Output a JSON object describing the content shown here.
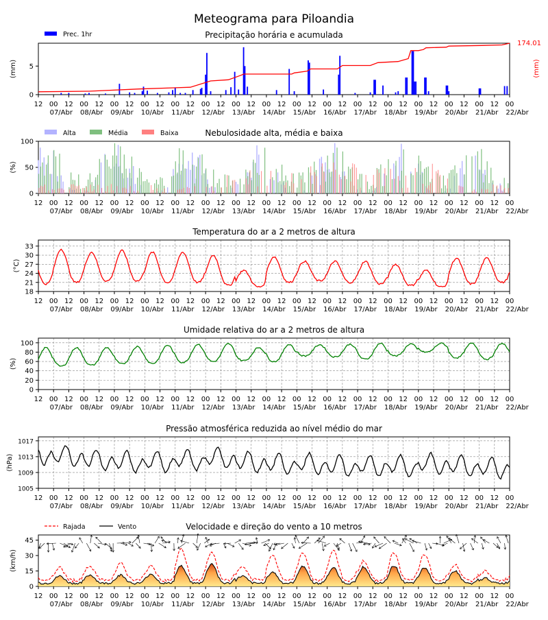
{
  "figure_title": "Meteograma para Piloandia",
  "hour_ticks": [
    "12",
    "00",
    "12",
    "00",
    "12",
    "00",
    "12",
    "00",
    "12",
    "00",
    "12",
    "00",
    "12",
    "00",
    "12",
    "00",
    "12",
    "00",
    "12",
    "00",
    "12",
    "00",
    "12",
    "00",
    "12",
    "00",
    "12",
    "00",
    "12",
    "00",
    "12",
    "00"
  ],
  "day_labels": [
    "07/Abr",
    "08/Abr",
    "09/Abr",
    "10/Abr",
    "11/Abr",
    "12/Abr",
    "13/Abr",
    "14/Abr",
    "15/Abr",
    "16/Abr",
    "17/Abr",
    "18/Abr",
    "19/Abr",
    "20/Abr",
    "21/Abr",
    "22/Abr"
  ],
  "colors": {
    "precip_bar": "#0000ff",
    "precip_line": "#ff0000",
    "cloud_high": "#b3b3ff",
    "cloud_mid": "#7fbf7f",
    "cloud_low": "#ff8080",
    "temperature": "#ff0000",
    "humidity": "#008000",
    "pressure": "#000000",
    "gust": "#ff0000",
    "wind": "#000000"
  },
  "chart_data": [
    {
      "id": "precip",
      "type": "bar",
      "title": "Precipitação horária e acumulada",
      "ylabel": "(mm)",
      "ylabel_right": "(mm)",
      "ylim": [
        0,
        9
      ],
      "yticks": [
        0,
        5
      ],
      "x_unit": "hours since 06/Abr 12h",
      "xlim": [
        0,
        372
      ],
      "legend": [
        {
          "name": "Prec. 1hr"
        }
      ],
      "accum_label": "174.01",
      "bars": [
        [
          18,
          0.3
        ],
        [
          24,
          0.3
        ],
        [
          37,
          0.2
        ],
        [
          40,
          0.3
        ],
        [
          53,
          0.2
        ],
        [
          64,
          1.9
        ],
        [
          72,
          0.4
        ],
        [
          76,
          0.3
        ],
        [
          82,
          0.6
        ],
        [
          83,
          1.4
        ],
        [
          86,
          0.7
        ],
        [
          94,
          0.3
        ],
        [
          103,
          0.4
        ],
        [
          106,
          0.8
        ],
        [
          108,
          1.2
        ],
        [
          112,
          0.3
        ],
        [
          116,
          0.3
        ],
        [
          122,
          0.8
        ],
        [
          128,
          1.0
        ],
        [
          129,
          1.2
        ],
        [
          132,
          3.5
        ],
        [
          133,
          7.3
        ],
        [
          136,
          0.6
        ],
        [
          148,
          0.8
        ],
        [
          152,
          1.3
        ],
        [
          155,
          4.0
        ],
        [
          158,
          0.9
        ],
        [
          162,
          8.3
        ],
        [
          163,
          5.0
        ],
        [
          165,
          1.4
        ],
        [
          188,
          0.8
        ],
        [
          198,
          4.5
        ],
        [
          202,
          0.6
        ],
        [
          213,
          6.0
        ],
        [
          214,
          5.6
        ],
        [
          225,
          0.9
        ],
        [
          237,
          3.5
        ],
        [
          238,
          6.8
        ],
        [
          250,
          0.3
        ],
        [
          262,
          0.4
        ],
        [
          265,
          2.6
        ],
        [
          266,
          2.6
        ],
        [
          272,
          1.6
        ],
        [
          282,
          0.4
        ],
        [
          284,
          0.6
        ],
        [
          290,
          3.0
        ],
        [
          291,
          3.0
        ],
        [
          295,
          7.6
        ],
        [
          296,
          7.6
        ],
        [
          297,
          2.3
        ],
        [
          298,
          2.3
        ],
        [
          305,
          3.0
        ],
        [
          306,
          3.0
        ],
        [
          308,
          0.6
        ],
        [
          322,
          1.6
        ],
        [
          323,
          1.6
        ],
        [
          324,
          0.6
        ],
        [
          348,
          1.1
        ],
        [
          349,
          1.1
        ],
        [
          368,
          1.5
        ],
        [
          370,
          1.5
        ]
      ],
      "accum": [
        [
          0,
          0.5
        ],
        [
          40,
          0.6
        ],
        [
          80,
          1.0
        ],
        [
          120,
          1.3
        ],
        [
          136,
          2.4
        ],
        [
          150,
          2.6
        ],
        [
          160,
          3.4
        ],
        [
          162,
          3.6
        ],
        [
          200,
          3.6
        ],
        [
          202,
          3.8
        ],
        [
          212,
          4.1
        ],
        [
          215,
          4.5
        ],
        [
          236,
          4.5
        ],
        [
          240,
          5.1
        ],
        [
          262,
          5.1
        ],
        [
          268,
          5.6
        ],
        [
          284,
          5.8
        ],
        [
          292,
          6.3
        ],
        [
          294,
          7.7
        ],
        [
          300,
          7.7
        ],
        [
          304,
          7.9
        ],
        [
          306,
          8.2
        ],
        [
          322,
          8.3
        ],
        [
          324,
          8.5
        ],
        [
          350,
          8.6
        ],
        [
          366,
          8.7
        ],
        [
          372,
          9.0
        ]
      ]
    },
    {
      "id": "clouds",
      "type": "bar",
      "title": "Nebulosidade alta, média e baixa",
      "ylabel": "(%)",
      "ylim": [
        0,
        100
      ],
      "yticks": [
        0,
        50,
        100
      ],
      "legend": [
        {
          "name": "Alta"
        },
        {
          "name": "Média"
        },
        {
          "name": "Baixa"
        }
      ],
      "series_note": "periodic high/mid/low cover (%) per hour"
    },
    {
      "id": "temp",
      "type": "line",
      "title": "Temperatura do ar a 2 metros de altura",
      "ylabel": "(°C)",
      "ylim": [
        18,
        35
      ],
      "yticks": [
        18,
        21,
        24,
        27,
        30,
        33
      ],
      "daily_max": [
        32,
        32,
        31,
        31.5,
        31,
        31,
        30,
        25,
        29.5,
        28,
        28,
        28,
        27,
        25,
        29,
        29
      ],
      "daily_min": [
        20.5,
        21,
        21.5,
        21.5,
        21,
        21,
        20,
        19.5,
        21,
        21.5,
        21,
        20.5,
        20,
        19.5,
        20.5,
        21
      ]
    },
    {
      "id": "humidity",
      "type": "line",
      "title": "Umidade relativa do ar a 2 metros de altura",
      "ylabel": "(%)",
      "ylim": [
        0,
        110
      ],
      "yticks": [
        0,
        20,
        40,
        60,
        80,
        100
      ],
      "daily_max": [
        90,
        90,
        90,
        92,
        95,
        97,
        98,
        90,
        97,
        96,
        97,
        99,
        98,
        99,
        99,
        99
      ],
      "daily_min": [
        45,
        50,
        52,
        55,
        56,
        58,
        60,
        62,
        60,
        72,
        70,
        65,
        72,
        80,
        68,
        65
      ]
    },
    {
      "id": "pressure",
      "type": "line",
      "title": "Pressão atmosférica reduzida ao nível médio do mar",
      "ylabel": "(hPa)",
      "ylim": [
        1005,
        1018
      ],
      "yticks": [
        1005,
        1009,
        1013,
        1017
      ],
      "daily_mean": [
        1013.5,
        1013,
        1012,
        1011.5,
        1011.5,
        1012,
        1012.5,
        1011.5,
        1011,
        1011,
        1010.5,
        1010.5,
        1010.5,
        1011,
        1010.5,
        1010
      ]
    },
    {
      "id": "wind",
      "type": "line",
      "title": "Velocidade e direção do vento a 10 metros",
      "ylabel": "(km/h)",
      "ylim": [
        0,
        50
      ],
      "yticks": [
        0,
        15,
        30,
        45
      ],
      "legend": [
        {
          "name": "Rajada"
        },
        {
          "name": "Vento"
        }
      ],
      "daily_peak_wind": [
        9,
        10,
        11,
        11,
        12,
        20,
        22,
        10,
        14,
        20,
        18,
        19,
        20,
        18,
        15,
        8
      ],
      "daily_peak_gust": [
        18,
        15,
        17,
        20,
        17,
        34,
        30,
        16,
        28,
        30,
        32,
        22,
        30,
        28,
        18,
        12
      ]
    }
  ]
}
